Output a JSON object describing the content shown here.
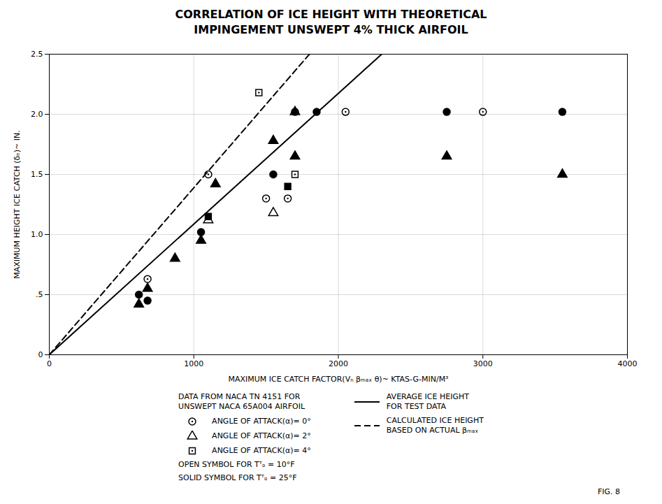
{
  "chart_data": {
    "type": "scatter",
    "title": "CORRELATION OF ICE HEIGHT WITH THEORETICAL",
    "subtitle": "IMPINGEMENT UNSWEPT 4% THICK AIRFOIL",
    "x_label": "MAXIMUM ICE CATCH FACTOR(Vₙ βₘₐₓ θ)~ KTAS-G-MIN/M³",
    "y_label": "MAXIMUM HEIGHT ICE CATCH (δₙ)~ IN.",
    "xlim": [
      0,
      4000
    ],
    "ylim": [
      0,
      2.5
    ],
    "xticks": [
      0,
      1000,
      2000,
      3000,
      4000
    ],
    "yticks": [
      0,
      {
        "value": 0.5,
        "label": ".5"
      },
      {
        "value": 1.0,
        "label": "1.0"
      },
      1.5,
      {
        "value": 2.0,
        "label": "2.0"
      },
      2.5
    ],
    "grid": true,
    "series": [
      {
        "name": "AVERAGE ICE HEIGHT\nFOR TEST DATA",
        "type": "line",
        "line_style": "solid",
        "x": [
          0,
          2300
        ],
        "values": [
          0,
          2.5
        ]
      },
      {
        "name": "CALCULATED ICE HEIGHT\nBASED ON ACTUAL βₘₐₓ",
        "type": "line",
        "line_style": "dashed",
        "x": [
          0,
          1800
        ],
        "values": [
          0,
          2.5
        ]
      },
      {
        "name": "ANGLE OF ATTACK(α)= 0°",
        "type": "scatter",
        "marker": "circle-open",
        "x": [
          680,
          1100,
          1500,
          1650,
          2050,
          3000
        ],
        "values": [
          0.63,
          1.5,
          1.3,
          1.3,
          2.02,
          2.02
        ]
      },
      {
        "name": "ANGLE OF ATTACK(α)= 0°",
        "type": "scatter",
        "marker": "circle",
        "x": [
          620,
          680,
          1050,
          1550,
          1700,
          1850,
          2750,
          3550
        ],
        "values": [
          0.5,
          0.45,
          1.02,
          1.5,
          2.02,
          2.02,
          2.02,
          2.02
        ]
      },
      {
        "name": "ANGLE OF ATTACK(α)= 2°",
        "type": "scatter",
        "marker": "triangle-open",
        "x": [
          1100,
          1550,
          1700
        ],
        "values": [
          1.12,
          1.18,
          2.02
        ]
      },
      {
        "name": "ANGLE OF ATTACK(α)= 2°",
        "type": "scatter",
        "marker": "triangle",
        "x": [
          620,
          680,
          870,
          1050,
          1150,
          1550,
          1700,
          2750,
          3550
        ],
        "values": [
          0.42,
          0.55,
          0.8,
          0.95,
          1.42,
          1.78,
          1.65,
          1.65,
          1.5
        ]
      },
      {
        "name": "ANGLE OF ATTACK(α)= 4°",
        "type": "scatter",
        "marker": "square-open",
        "x": [
          1450,
          1700
        ],
        "values": [
          2.18,
          1.5
        ]
      },
      {
        "name": "ANGLE OF ATTACK(α)= 4°",
        "type": "scatter",
        "marker": "square",
        "x": [
          1100,
          1650
        ],
        "values": [
          1.15,
          1.4
        ]
      }
    ],
    "annotations": [
      "DATA FROM NACA TN 4151 FOR\nUNSWEPT NACA 65A004 AIRFOIL",
      "OPEN SYMBOL FOR Tᵀₒ = 10°F",
      "SOLID SYMBOL FOR Tᵀₒ = 25°F"
    ],
    "caption": "FIG. 8"
  }
}
